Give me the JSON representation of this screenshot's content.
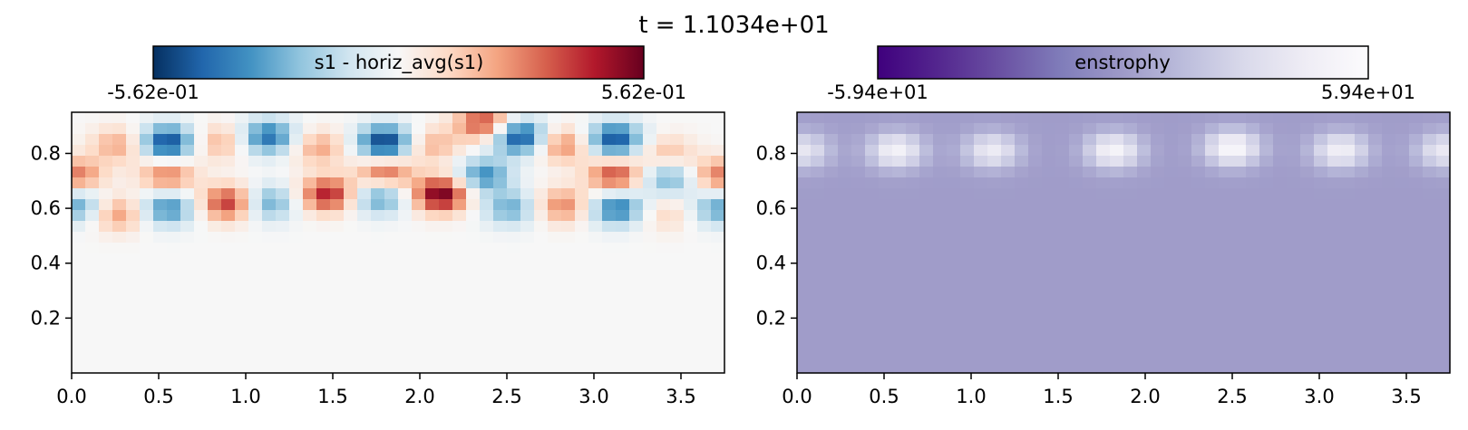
{
  "figure": {
    "suptitle": "t = 1.1034e+01"
  },
  "chart_data": [
    {
      "type": "heatmap",
      "title": "",
      "colorbar": {
        "label": "s1 - horiz_avg(s1)",
        "min_label": "-5.62e-01",
        "max_label": "5.62e-01",
        "vmin": -0.562,
        "vmax": 0.562,
        "colormap": "RdBu_r",
        "colors": [
          "#053061",
          "#2166ac",
          "#4393c3",
          "#92c5de",
          "#d1e5f0",
          "#f7f7f7",
          "#fddbc7",
          "#f4a582",
          "#d6604d",
          "#b2182b",
          "#67001f"
        ]
      },
      "xlim": [
        0,
        3.75
      ],
      "ylim": [
        0,
        0.95
      ],
      "xticks": [
        "0.0",
        "0.5",
        "1.0",
        "1.5",
        "2.0",
        "2.5",
        "3.0",
        "3.5"
      ],
      "yticks": [
        "0.2",
        "0.4",
        "0.6",
        "0.8"
      ],
      "xlabel": "",
      "ylabel": "",
      "grid": false,
      "features": [
        {
          "x": 0.27,
          "y": 0.83,
          "value": 0.22
        },
        {
          "x": 0.27,
          "y": 0.58,
          "value": 0.25
        },
        {
          "x": 0.55,
          "y": 0.84,
          "value": -0.52
        },
        {
          "x": 0.55,
          "y": 0.6,
          "value": -0.36
        },
        {
          "x": 0.55,
          "y": 0.72,
          "value": 0.3
        },
        {
          "x": 0.9,
          "y": 0.62,
          "value": 0.42
        },
        {
          "x": 0.85,
          "y": 0.84,
          "value": 0.2
        },
        {
          "x": 1.13,
          "y": 0.86,
          "value": -0.42
        },
        {
          "x": 1.13,
          "y": 0.62,
          "value": -0.3
        },
        {
          "x": 1.42,
          "y": 0.82,
          "value": 0.22
        },
        {
          "x": 1.47,
          "y": 0.65,
          "value": 0.45
        },
        {
          "x": 1.8,
          "y": 0.84,
          "value": -0.55
        },
        {
          "x": 1.77,
          "y": 0.64,
          "value": -0.32
        },
        {
          "x": 1.8,
          "y": 0.73,
          "value": 0.35
        },
        {
          "x": 2.12,
          "y": 0.65,
          "value": 0.56
        },
        {
          "x": 2.07,
          "y": 0.83,
          "value": 0.2
        },
        {
          "x": 2.37,
          "y": 0.91,
          "value": 0.4
        },
        {
          "x": 2.37,
          "y": 0.72,
          "value": -0.35
        },
        {
          "x": 2.57,
          "y": 0.86,
          "value": -0.52
        },
        {
          "x": 2.52,
          "y": 0.6,
          "value": -0.28
        },
        {
          "x": 2.82,
          "y": 0.83,
          "value": 0.28
        },
        {
          "x": 2.82,
          "y": 0.61,
          "value": 0.28
        },
        {
          "x": 3.12,
          "y": 0.85,
          "value": -0.5
        },
        {
          "x": 3.13,
          "y": 0.6,
          "value": -0.4
        },
        {
          "x": 3.12,
          "y": 0.72,
          "value": 0.38
        },
        {
          "x": 3.42,
          "y": 0.8,
          "value": 0.18
        },
        {
          "x": 3.42,
          "y": 0.58,
          "value": 0.12
        },
        {
          "x": 3.43,
          "y": 0.71,
          "value": -0.28
        },
        {
          "x": 0.03,
          "y": 0.61,
          "value": -0.3
        },
        {
          "x": 3.72,
          "y": 0.6,
          "value": -0.3
        },
        {
          "x": 0.03,
          "y": 0.72,
          "value": 0.3
        },
        {
          "x": 3.72,
          "y": 0.72,
          "value": 0.3
        }
      ]
    },
    {
      "type": "heatmap",
      "title": "",
      "colorbar": {
        "label": "enstrophy",
        "min_label": "-5.94e+01",
        "max_label": "5.94e+01",
        "vmin": -59.4,
        "vmax": 59.4,
        "colormap": "Purples_r",
        "colors": [
          "#3f007d",
          "#54278f",
          "#6a51a3",
          "#807dba",
          "#9e9ac8",
          "#bcbddc",
          "#dadaeb",
          "#efedf5",
          "#fcfbfd"
        ]
      },
      "background_value": 1.0,
      "xlim": [
        0,
        3.75
      ],
      "ylim": [
        0,
        0.95
      ],
      "xticks": [
        "0.0",
        "0.5",
        "1.0",
        "1.5",
        "2.0",
        "2.5",
        "3.0",
        "3.5"
      ],
      "yticks": [
        "0.2",
        "0.4",
        "0.6",
        "0.8"
      ],
      "xlabel": "",
      "ylabel": "",
      "grid": false,
      "features": [
        {
          "x": 0.57,
          "y": 0.81,
          "value": 48
        },
        {
          "x": 1.12,
          "y": 0.81,
          "value": 42
        },
        {
          "x": 1.82,
          "y": 0.81,
          "value": 50
        },
        {
          "x": 2.5,
          "y": 0.82,
          "value": 55
        },
        {
          "x": 3.12,
          "y": 0.81,
          "value": 46
        },
        {
          "x": 3.72,
          "y": 0.81,
          "value": 40
        },
        {
          "x": 0.03,
          "y": 0.81,
          "value": 38
        }
      ]
    }
  ]
}
